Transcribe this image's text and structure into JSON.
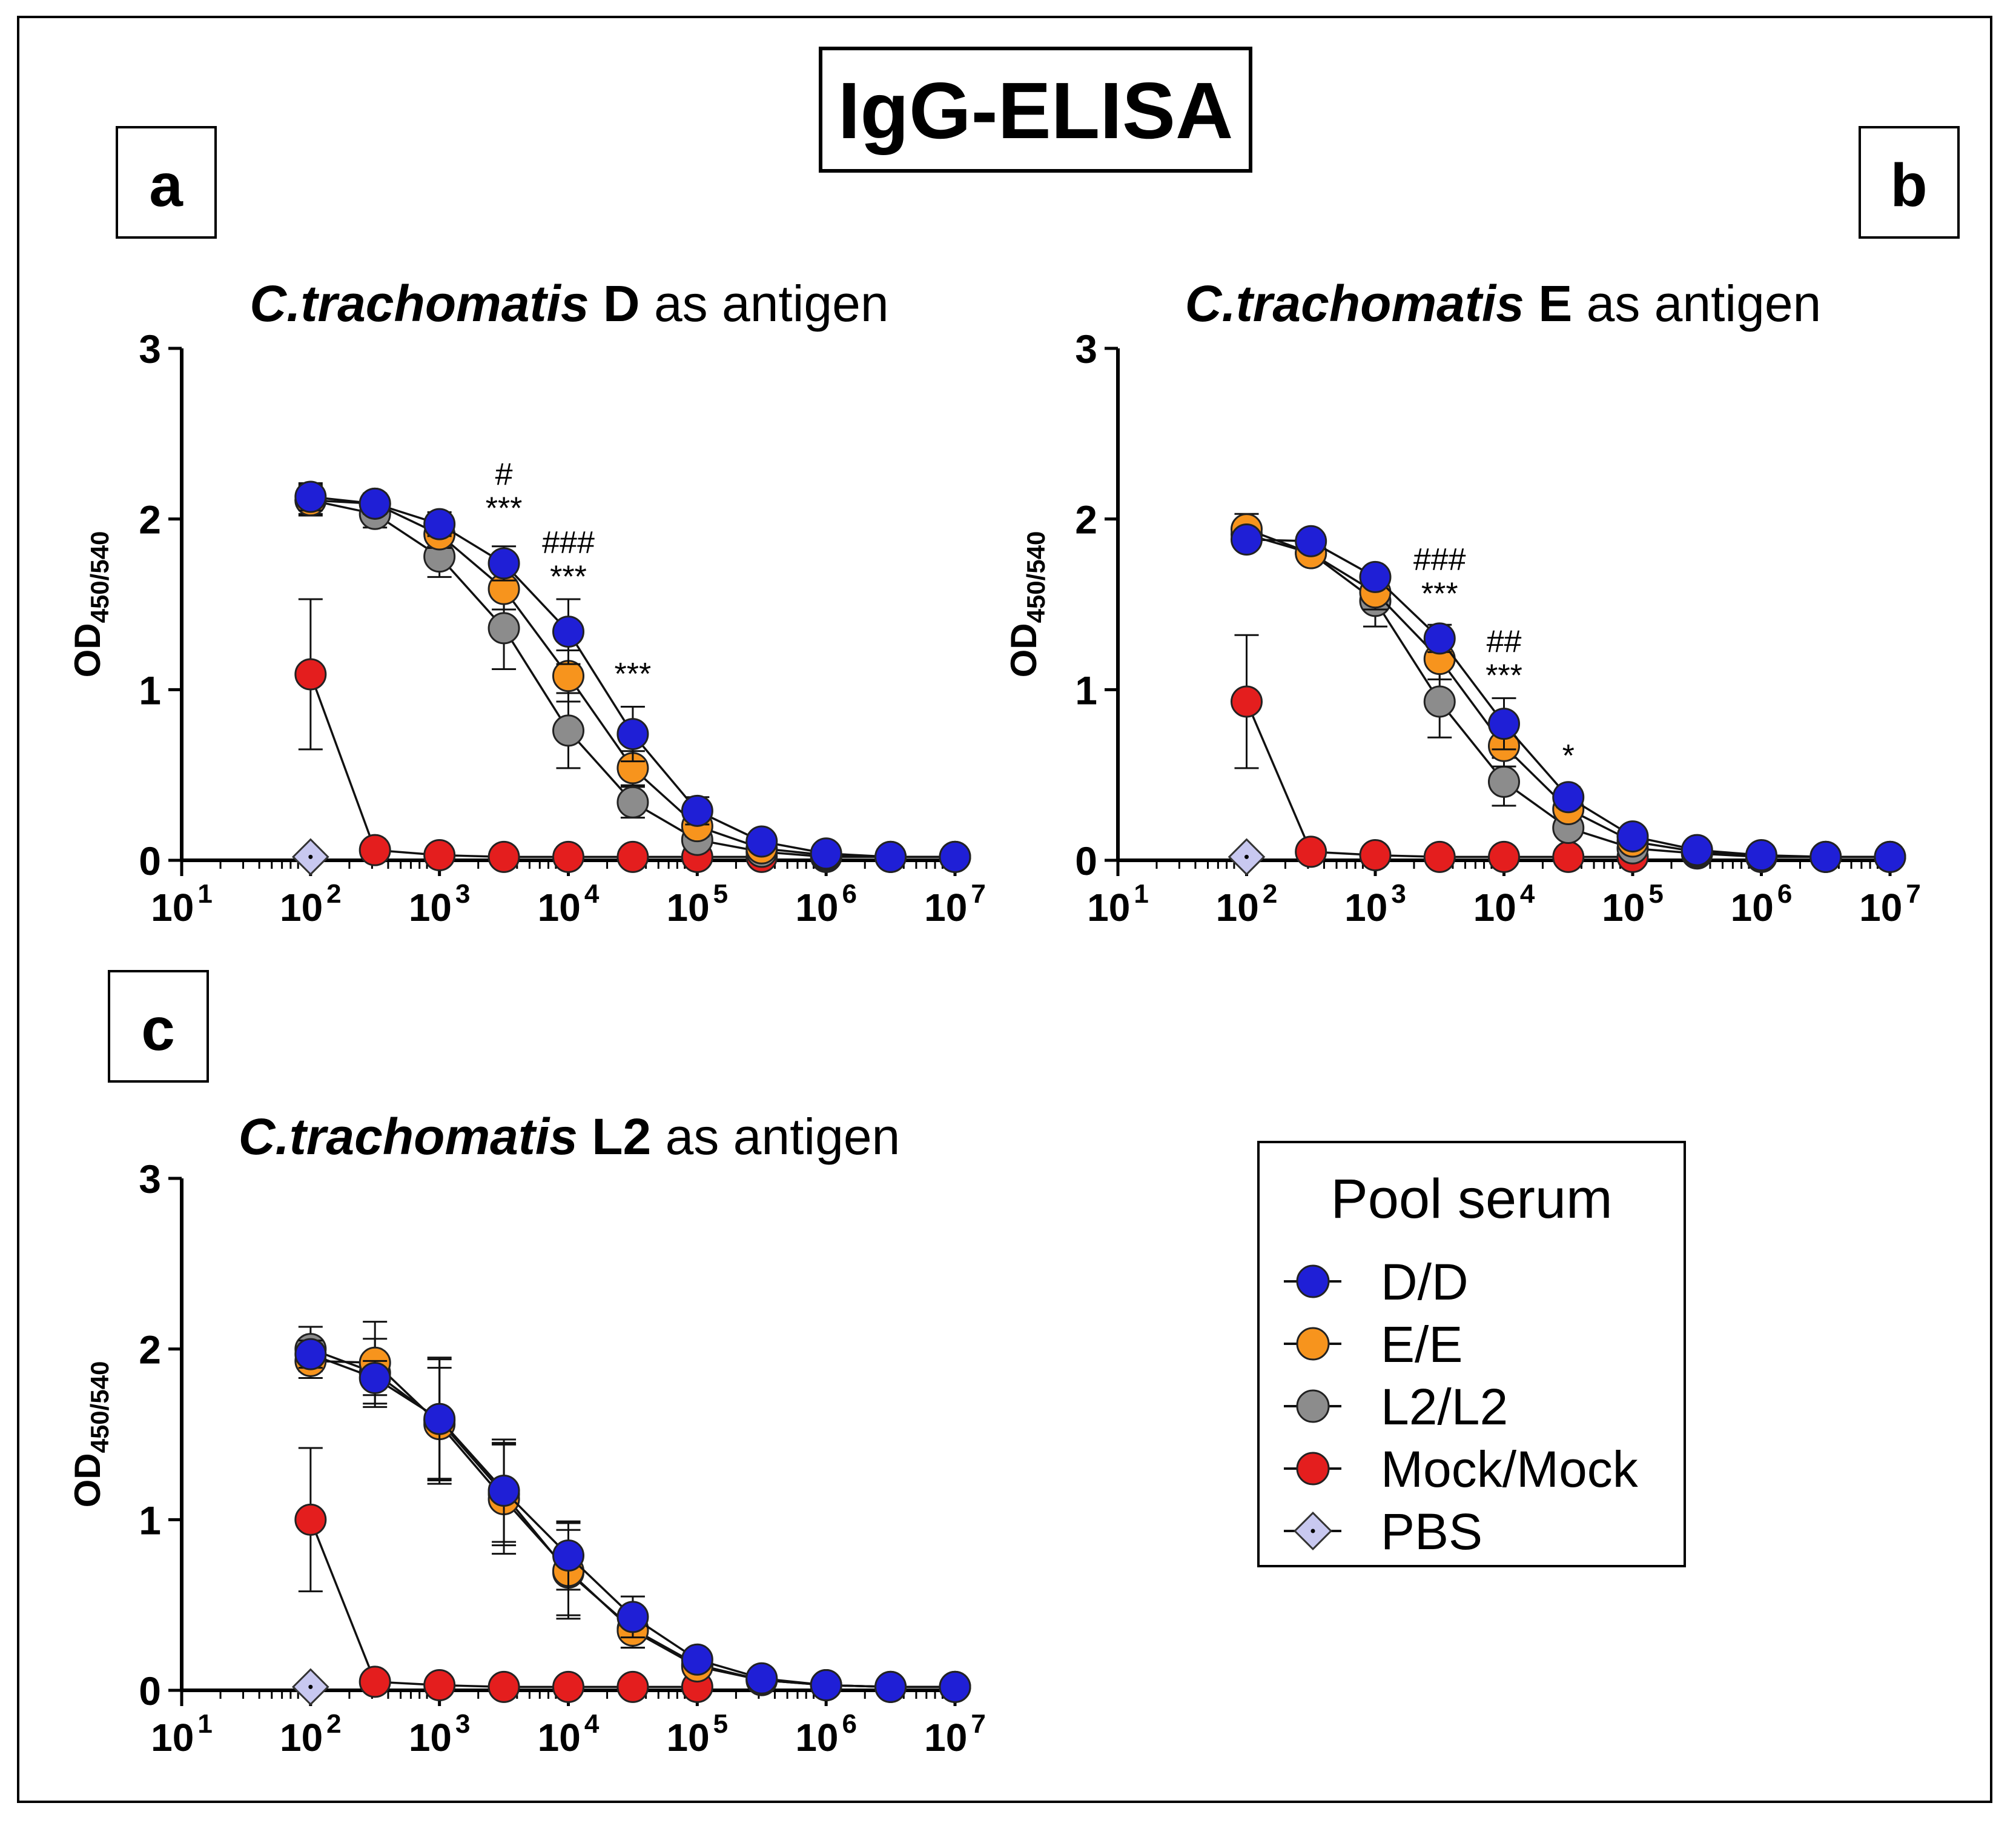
{
  "figure_title": "IgG-ELISA",
  "legend": {
    "title": "Pool serum",
    "entries": [
      {
        "label": "D/D",
        "color": "#1f1fd6",
        "marker": "circle"
      },
      {
        "label": "E/E",
        "color": "#f7941d",
        "marker": "circle"
      },
      {
        "label": "L2/L2",
        "color": "#8c8c8c",
        "marker": "circle"
      },
      {
        "label": "Mock/Mock",
        "color": "#e41e1e",
        "marker": "circle"
      },
      {
        "label": "PBS",
        "color": "#c8c8f0",
        "marker": "diamond"
      }
    ]
  },
  "panels": [
    {
      "letter": "a",
      "title_italic": "C.trachomatis",
      "title_bold": "D",
      "title_rest": "as antigen"
    },
    {
      "letter": "b",
      "title_italic": "C.trachomatis",
      "title_bold": "E",
      "title_rest": "as antigen"
    },
    {
      "letter": "c",
      "title_italic": "C.trachomatis",
      "title_bold": "L2",
      "title_rest": "as antigen"
    }
  ],
  "chart_data": [
    {
      "panel": "a",
      "type": "line",
      "xscale": "log",
      "xlim": [
        10,
        10000000
      ],
      "ylim": [
        0,
        3
      ],
      "ylabel": "OD450/540",
      "ylabel_main": "OD",
      "ylabel_sub": "450/540",
      "xticks": [
        "1",
        "2",
        "3",
        "4",
        "5",
        "6",
        "7"
      ],
      "yticks": [
        "0",
        "1",
        "2",
        "3"
      ],
      "series": [
        {
          "name": "D/D",
          "x": [
            100,
            316,
            1000,
            3162,
            10000,
            31623,
            100000,
            316228,
            1000000,
            3162278,
            10000000
          ],
          "y": [
            2.13,
            2.09,
            1.97,
            1.74,
            1.34,
            0.74,
            0.29,
            0.11,
            0.04,
            0.02,
            0.02
          ],
          "err": [
            0.08,
            0.06,
            0.07,
            0.1,
            0.19,
            0.16,
            0.08,
            0.03,
            0.01,
            0,
            0
          ]
        },
        {
          "name": "E/E",
          "x": [
            100,
            316,
            1000,
            3162,
            10000,
            31623,
            100000,
            316228,
            1000000,
            3162278,
            10000000
          ],
          "y": [
            2.11,
            2.09,
            1.91,
            1.59,
            1.08,
            0.54,
            0.2,
            0.07,
            0.03,
            0.02,
            0.02
          ],
          "err": [
            0.08,
            0.05,
            0.08,
            0.12,
            0.15,
            0.1,
            0.06,
            0.02,
            0.01,
            0,
            0
          ]
        },
        {
          "name": "L2/L2",
          "x": [
            100,
            316,
            1000,
            3162,
            10000,
            31623,
            100000,
            316228,
            1000000,
            3162278,
            10000000
          ],
          "y": [
            2.11,
            2.03,
            1.78,
            1.36,
            0.76,
            0.34,
            0.12,
            0.05,
            0.02,
            0.02,
            0.02
          ],
          "err": [
            0.09,
            0.08,
            0.12,
            0.24,
            0.22,
            0.09,
            0.04,
            0.02,
            0.01,
            0,
            0
          ]
        },
        {
          "name": "Mock/Mock",
          "x": [
            100,
            316,
            1000,
            3162,
            10000,
            31623,
            100000,
            316228
          ],
          "y": [
            1.09,
            0.06,
            0.03,
            0.02,
            0.02,
            0.02,
            0.02,
            0.02
          ],
          "err": [
            0.44,
            0,
            0,
            0,
            0,
            0,
            0,
            0
          ]
        },
        {
          "name": "PBS",
          "x": [
            100
          ],
          "y": [
            0.02
          ],
          "err": [
            0
          ]
        }
      ],
      "annotations": [
        {
          "text": "#",
          "x": 3162,
          "y": 2.2
        },
        {
          "text": "***",
          "x": 3162,
          "y": 2.0
        },
        {
          "text": "###",
          "x": 10000,
          "y": 1.8
        },
        {
          "text": "***",
          "x": 10000,
          "y": 1.6
        },
        {
          "text": "***",
          "x": 31623,
          "y": 1.03
        }
      ]
    },
    {
      "panel": "b",
      "type": "line",
      "xscale": "log",
      "xlim": [
        10,
        10000000
      ],
      "ylim": [
        0,
        3
      ],
      "ylabel": "OD450/540",
      "ylabel_main": "OD",
      "ylabel_sub": "450/540",
      "xticks": [
        "1",
        "2",
        "3",
        "4",
        "5",
        "6",
        "7"
      ],
      "yticks": [
        "0",
        "1",
        "2",
        "3"
      ],
      "series": [
        {
          "name": "D/D",
          "x": [
            100,
            316,
            1000,
            3162,
            10000,
            31623,
            100000,
            316228,
            1000000,
            3162278,
            10000000
          ],
          "y": [
            1.88,
            1.87,
            1.66,
            1.3,
            0.8,
            0.37,
            0.14,
            0.06,
            0.03,
            0.02,
            0.02
          ],
          "err": [
            0.05,
            0.03,
            0.05,
            0.08,
            0.15,
            0.06,
            0.04,
            0.02,
            0.01,
            0,
            0
          ]
        },
        {
          "name": "E/E",
          "x": [
            100,
            316,
            1000,
            3162,
            10000,
            31623,
            100000,
            316228,
            1000000,
            3162278,
            10000000
          ],
          "y": [
            1.94,
            1.8,
            1.57,
            1.18,
            0.67,
            0.3,
            0.11,
            0.05,
            0.02,
            0.02,
            0.02
          ],
          "err": [
            0.09,
            0.03,
            0.1,
            0.12,
            0.12,
            0.05,
            0.03,
            0.02,
            0.01,
            0,
            0
          ]
        },
        {
          "name": "L2/L2",
          "x": [
            100,
            316,
            1000,
            3162,
            10000,
            31623,
            100000,
            316228,
            1000000,
            3162278,
            10000000
          ],
          "y": [
            1.91,
            1.8,
            1.52,
            0.93,
            0.46,
            0.19,
            0.07,
            0.04,
            0.02,
            0.02,
            0.02
          ],
          "err": [
            0.05,
            0.03,
            0.15,
            0.21,
            0.14,
            0.05,
            0.02,
            0.01,
            0.01,
            0,
            0
          ]
        },
        {
          "name": "Mock/Mock",
          "x": [
            100,
            316,
            1000,
            3162,
            10000,
            31623,
            100000
          ],
          "y": [
            0.93,
            0.05,
            0.03,
            0.02,
            0.02,
            0.02,
            0.02
          ],
          "err": [
            0.39,
            0,
            0,
            0,
            0,
            0,
            0
          ]
        },
        {
          "name": "PBS",
          "x": [
            100
          ],
          "y": [
            0.02
          ],
          "err": [
            0
          ]
        }
      ],
      "annotations": [
        {
          "text": "###",
          "x": 3162,
          "y": 1.7
        },
        {
          "text": "***",
          "x": 3162,
          "y": 1.5
        },
        {
          "text": "##",
          "x": 10000,
          "y": 1.22
        },
        {
          "text": "***",
          "x": 10000,
          "y": 1.02
        },
        {
          "text": "*",
          "x": 31623,
          "y": 0.55
        }
      ]
    },
    {
      "panel": "c",
      "type": "line",
      "xscale": "log",
      "xlim": [
        10,
        10000000
      ],
      "ylim": [
        0,
        3
      ],
      "ylabel": "OD450/540",
      "ylabel_main": "OD",
      "ylabel_sub": "450/540",
      "xticks": [
        "1",
        "2",
        "3",
        "4",
        "5",
        "6",
        "7"
      ],
      "yticks": [
        "0",
        "1",
        "2",
        "3"
      ],
      "series": [
        {
          "name": "D/D",
          "x": [
            100,
            316,
            1000,
            3162,
            10000,
            31623,
            100000,
            316228,
            1000000,
            3162278,
            10000000
          ],
          "y": [
            1.97,
            1.83,
            1.59,
            1.17,
            0.79,
            0.43,
            0.18,
            0.07,
            0.03,
            0.02,
            0.02
          ],
          "err": [
            0.08,
            0.1,
            0.35,
            0.3,
            0.2,
            0.12,
            0.05,
            0.02,
            0.01,
            0,
            0
          ]
        },
        {
          "name": "E/E",
          "x": [
            100,
            316,
            1000,
            3162,
            10000,
            31623,
            100000,
            316228,
            1000000,
            3162278,
            10000000
          ],
          "y": [
            1.93,
            1.92,
            1.56,
            1.12,
            0.7,
            0.35,
            0.14,
            0.06,
            0.03,
            0.02,
            0.02
          ],
          "err": [
            0.1,
            0.24,
            0.33,
            0.32,
            0.28,
            0.1,
            0.04,
            0.02,
            0.01,
            0,
            0
          ]
        },
        {
          "name": "L2/L2",
          "x": [
            100,
            316,
            1000,
            3162,
            10000,
            31623,
            100000,
            316228,
            1000000,
            3162278,
            10000000
          ],
          "y": [
            2.0,
            1.86,
            1.58,
            1.15,
            0.69,
            0.36,
            0.15,
            0.06,
            0.03,
            0.02,
            0.02
          ],
          "err": [
            0.13,
            0.2,
            0.37,
            0.3,
            0.25,
            0.11,
            0.04,
            0.02,
            0.01,
            0,
            0
          ]
        },
        {
          "name": "Mock/Mock",
          "x": [
            100,
            316,
            1000,
            3162,
            10000,
            31623,
            100000
          ],
          "y": [
            1.0,
            0.05,
            0.03,
            0.02,
            0.02,
            0.02,
            0.02
          ],
          "err": [
            0.42,
            0,
            0,
            0,
            0,
            0,
            0
          ]
        },
        {
          "name": "PBS",
          "x": [
            100
          ],
          "y": [
            0.02
          ],
          "err": [
            0
          ]
        }
      ],
      "annotations": []
    }
  ]
}
